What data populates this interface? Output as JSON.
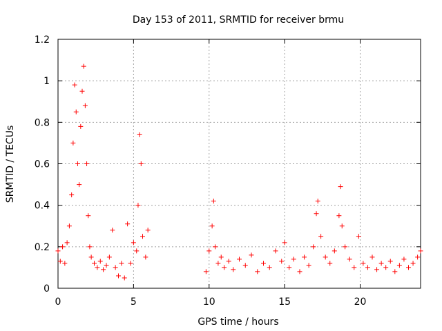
{
  "chart_data": {
    "type": "scatter",
    "title": "Day 153 of 2011, SRMTID for receiver brmu",
    "xlabel": "GPS time / hours",
    "ylabel": "SRMTID / TECUs",
    "xlim": [
      0,
      24
    ],
    "ylim": [
      0,
      1.2
    ],
    "x_ticks": [
      0,
      5,
      10,
      15,
      20
    ],
    "x_tick_labels": [
      "0",
      "5",
      "10",
      "15",
      "20"
    ],
    "y_ticks": [
      0,
      0.2,
      0.4,
      0.6,
      0.8,
      1,
      1.2
    ],
    "y_tick_labels": [
      "0",
      "0.2",
      "0.4",
      "0.6",
      "0.8",
      "1",
      "1.2"
    ],
    "grid": true,
    "marker": "plus",
    "series": [
      {
        "name": "SRMTID",
        "color": "#ff0000",
        "x": [
          0.0,
          0.15,
          0.3,
          0.45,
          0.6,
          0.75,
          0.9,
          1.0,
          1.1,
          1.2,
          1.3,
          1.4,
          1.5,
          1.6,
          1.7,
          1.8,
          1.9,
          2.0,
          2.1,
          2.2,
          2.4,
          2.6,
          2.8,
          3.0,
          3.2,
          3.4,
          3.6,
          3.8,
          4.0,
          4.2,
          4.4,
          4.6,
          4.8,
          5.0,
          5.2,
          5.3,
          5.4,
          5.5,
          5.6,
          5.8,
          5.95,
          9.8,
          10.0,
          10.2,
          10.3,
          10.4,
          10.6,
          10.8,
          11.0,
          11.3,
          11.6,
          12.0,
          12.4,
          12.8,
          13.2,
          13.6,
          14.0,
          14.4,
          14.8,
          15.0,
          15.3,
          15.6,
          16.0,
          16.3,
          16.6,
          16.9,
          17.1,
          17.2,
          17.4,
          17.7,
          18.0,
          18.3,
          18.6,
          18.7,
          18.8,
          19.0,
          19.3,
          19.6,
          19.9,
          20.2,
          20.5,
          20.8,
          21.1,
          21.4,
          21.7,
          22.0,
          22.3,
          22.6,
          22.9,
          23.2,
          23.5,
          23.8,
          24.0
        ],
        "values": [
          0.18,
          0.13,
          0.2,
          0.12,
          0.22,
          0.3,
          0.45,
          0.7,
          0.98,
          0.85,
          0.6,
          0.5,
          0.78,
          0.95,
          1.07,
          0.88,
          0.6,
          0.35,
          0.2,
          0.15,
          0.12,
          0.1,
          0.13,
          0.09,
          0.11,
          0.15,
          0.28,
          0.1,
          0.06,
          0.12,
          0.05,
          0.31,
          0.12,
          0.22,
          0.18,
          0.4,
          0.74,
          0.6,
          0.25,
          0.15,
          0.28,
          0.08,
          0.18,
          0.3,
          0.42,
          0.2,
          0.12,
          0.15,
          0.1,
          0.13,
          0.09,
          0.14,
          0.11,
          0.16,
          0.08,
          0.12,
          0.1,
          0.18,
          0.13,
          0.22,
          0.1,
          0.14,
          0.08,
          0.15,
          0.11,
          0.2,
          0.36,
          0.42,
          0.25,
          0.15,
          0.12,
          0.18,
          0.35,
          0.49,
          0.3,
          0.2,
          0.14,
          0.1,
          0.25,
          0.12,
          0.1,
          0.15,
          0.09,
          0.12,
          0.1,
          0.13,
          0.08,
          0.11,
          0.14,
          0.1,
          0.12,
          0.15,
          0.18
        ]
      }
    ]
  }
}
